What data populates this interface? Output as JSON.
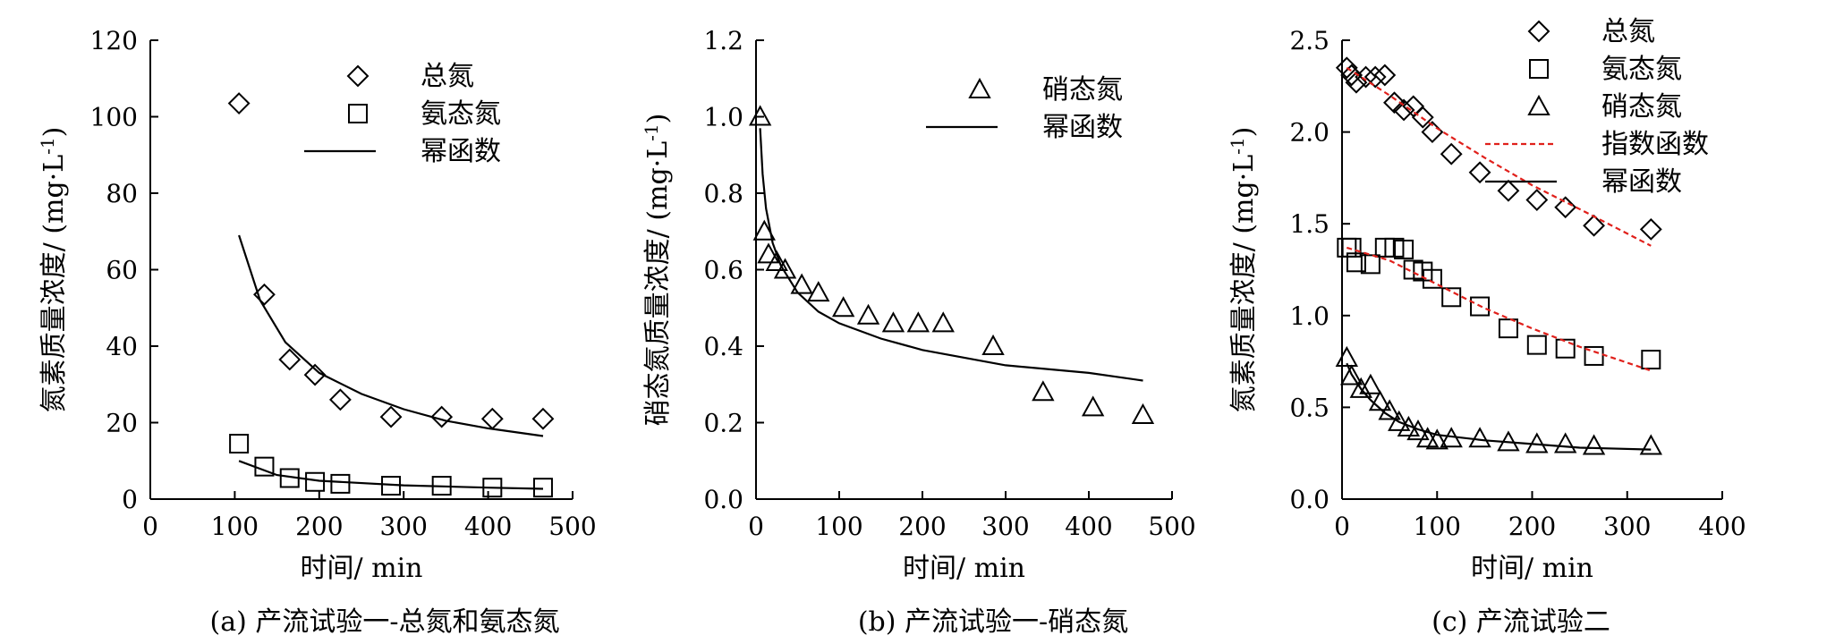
{
  "chart_data": [
    {
      "type": "scatter",
      "caption": "(a) 产流试验一-总氮和氨态氮",
      "xlabel": "时间/ min",
      "ylabel": "氮素质量浓度/ (mg·L-1)",
      "xlim": [
        0,
        500
      ],
      "ylim": [
        0,
        120
      ],
      "xticks": [
        "0",
        "100",
        "200",
        "300",
        "400",
        "500"
      ],
      "yticks": [
        "0",
        "20",
        "40",
        "60",
        "80",
        "100",
        "120"
      ],
      "legend_position": "top-right",
      "legend": [
        "总氮",
        "氨态氮",
        "幂函数"
      ],
      "series": [
        {
          "name": "总氮",
          "marker": "diamond",
          "x": [
            105,
            135,
            165,
            195,
            225,
            285,
            345,
            405,
            465
          ],
          "y": [
            103.5,
            53.5,
            36.5,
            32.5,
            26,
            21.5,
            21.5,
            21,
            21
          ]
        },
        {
          "name": "氨态氮",
          "marker": "square",
          "x": [
            105,
            135,
            165,
            195,
            225,
            285,
            345,
            405,
            465
          ],
          "y": [
            14.5,
            8.5,
            5.5,
            4.5,
            4,
            3.5,
            3.5,
            3,
            3
          ]
        },
        {
          "name": "幂函数",
          "line": "solid",
          "fit_for": "总氮",
          "x": [
            105,
            130,
            160,
            200,
            250,
            300,
            350,
            400,
            465
          ],
          "y": [
            69,
            52,
            41,
            33,
            27.5,
            23.5,
            20.5,
            18.5,
            16.5
          ]
        },
        {
          "name": "幂函数",
          "line": "solid",
          "fit_for": "氨态氮",
          "x": [
            105,
            150,
            200,
            300,
            400,
            465
          ],
          "y": [
            10,
            6.3,
            4.8,
            3.6,
            3.0,
            2.7
          ]
        }
      ]
    },
    {
      "type": "scatter",
      "caption": "(b) 产流试验一-硝态氮",
      "xlabel": "时间/ min",
      "ylabel": "硝态氮质量浓度/ (mg·L-1)",
      "xlim": [
        0,
        500
      ],
      "ylim": [
        0,
        1.2
      ],
      "xticks": [
        "0",
        "100",
        "200",
        "300",
        "400",
        "500"
      ],
      "yticks": [
        "0.0",
        "0.2",
        "0.4",
        "0.6",
        "0.8",
        "1.0",
        "1.2"
      ],
      "legend_position": "top-right",
      "legend": [
        "硝态氮",
        "幂函数"
      ],
      "series": [
        {
          "name": "硝态氮",
          "marker": "triangle",
          "x": [
            5,
            10,
            15,
            25,
            35,
            55,
            75,
            105,
            135,
            165,
            195,
            225,
            285,
            345,
            405,
            465
          ],
          "y": [
            1.0,
            0.7,
            0.64,
            0.62,
            0.6,
            0.56,
            0.54,
            0.5,
            0.48,
            0.46,
            0.46,
            0.46,
            0.4,
            0.28,
            0.24,
            0.22
          ]
        },
        {
          "name": "幂函数",
          "line": "solid",
          "x": [
            5,
            8,
            12,
            20,
            30,
            50,
            75,
            100,
            150,
            200,
            300,
            400,
            465
          ],
          "y": [
            0.97,
            0.85,
            0.76,
            0.67,
            0.61,
            0.54,
            0.49,
            0.46,
            0.42,
            0.39,
            0.35,
            0.33,
            0.31
          ]
        }
      ]
    },
    {
      "type": "scatter",
      "caption": "(c) 产流试验二",
      "xlabel": "时间/ min",
      "ylabel": "氮素质量浓度/ (mg·L-1)",
      "xlim": [
        0,
        400
      ],
      "ylim": [
        0,
        2.5
      ],
      "xticks": [
        "0",
        "100",
        "200",
        "300",
        "400"
      ],
      "yticks": [
        "0.0",
        "0.5",
        "1.0",
        "1.5",
        "2.0",
        "2.5"
      ],
      "legend_position": "top-right",
      "legend": [
        "总氮",
        "氨态氮",
        "硝态氮",
        "指数函数",
        "幂函数"
      ],
      "series": [
        {
          "name": "总氮",
          "marker": "diamond",
          "x": [
            5,
            10,
            15,
            25,
            35,
            45,
            55,
            65,
            75,
            85,
            95,
            115,
            145,
            175,
            205,
            235,
            265,
            325
          ],
          "y": [
            2.35,
            2.31,
            2.27,
            2.3,
            2.3,
            2.31,
            2.16,
            2.12,
            2.14,
            2.08,
            2.0,
            1.88,
            1.78,
            1.68,
            1.63,
            1.59,
            1.49,
            1.47
          ]
        },
        {
          "name": "氨态氮",
          "marker": "square",
          "x": [
            5,
            10,
            15,
            30,
            45,
            55,
            65,
            75,
            85,
            95,
            115,
            145,
            175,
            205,
            235,
            265,
            325
          ],
          "y": [
            1.37,
            1.37,
            1.29,
            1.28,
            1.37,
            1.37,
            1.36,
            1.25,
            1.24,
            1.2,
            1.1,
            1.05,
            0.93,
            0.84,
            0.82,
            0.78,
            0.76
          ]
        },
        {
          "name": "硝态氮",
          "marker": "triangle",
          "x": [
            5,
            10,
            20,
            30,
            40,
            50,
            60,
            70,
            80,
            90,
            100,
            115,
            145,
            175,
            205,
            235,
            265,
            325
          ],
          "y": [
            0.77,
            0.67,
            0.6,
            0.62,
            0.53,
            0.48,
            0.42,
            0.39,
            0.37,
            0.33,
            0.32,
            0.33,
            0.33,
            0.31,
            0.3,
            0.3,
            0.29,
            0.29
          ]
        },
        {
          "name": "指数函数",
          "line": "dashed",
          "color": "#e0201b",
          "fit_for": "总氮",
          "x": [
            5,
            50,
            100,
            150,
            200,
            250,
            325
          ],
          "y": [
            2.35,
            2.2,
            2.02,
            1.86,
            1.71,
            1.58,
            1.38
          ]
        },
        {
          "name": "指数函数",
          "line": "dashed",
          "color": "#e0201b",
          "fit_for": "氨态氮",
          "x": [
            5,
            50,
            100,
            150,
            200,
            250,
            325
          ],
          "y": [
            1.37,
            1.3,
            1.17,
            1.04,
            0.93,
            0.83,
            0.7
          ]
        },
        {
          "name": "幂函数",
          "line": "solid",
          "fit_for": "硝态氮",
          "x": [
            5,
            10,
            20,
            30,
            45,
            60,
            80,
            100,
            150,
            200,
            250,
            325
          ],
          "y": [
            0.74,
            0.68,
            0.6,
            0.54,
            0.47,
            0.42,
            0.38,
            0.35,
            0.32,
            0.3,
            0.28,
            0.27
          ]
        }
      ]
    }
  ]
}
